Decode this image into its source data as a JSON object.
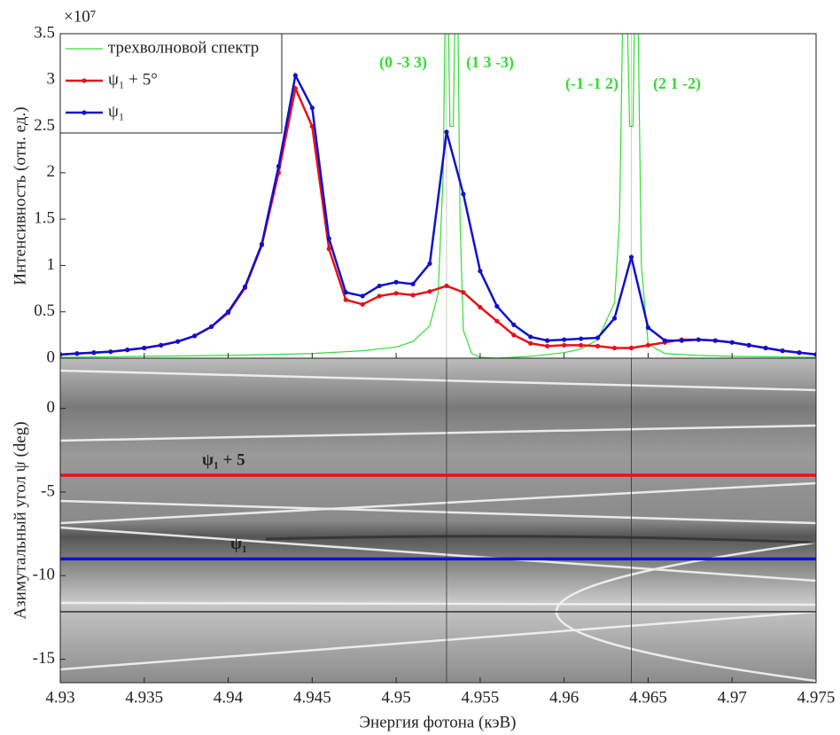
{
  "chart_data": [
    {
      "type": "line",
      "ylabel": "Интенсивность (отн. ед.)",
      "y_multiplier": "×10⁷",
      "xlim": [
        4.93,
        4.975
      ],
      "ylim": [
        0,
        3.5
      ],
      "yticks": [
        0,
        0.5,
        1,
        1.5,
        2,
        2.5,
        3,
        3.5
      ],
      "legend": "upper left",
      "annotations": [
        "(0 -3 3)",
        "(1 3 -3)",
        "(-1 -1 2)",
        "(2 1 -2)"
      ],
      "x": [
        4.93,
        4.931,
        4.932,
        4.933,
        4.934,
        4.935,
        4.936,
        4.937,
        4.938,
        4.939,
        4.94,
        4.941,
        4.942,
        4.943,
        4.944,
        4.945,
        4.946,
        4.947,
        4.948,
        4.949,
        4.95,
        4.951,
        4.952,
        4.953,
        4.954,
        4.955,
        4.956,
        4.957,
        4.958,
        4.959,
        4.96,
        4.961,
        4.962,
        4.963,
        4.964,
        4.965,
        4.966,
        4.967,
        4.968,
        4.969,
        4.97,
        4.971,
        4.972,
        4.973,
        4.974,
        4.975
      ],
      "series": [
        {
          "name": "трехволновой спектр",
          "color": "#33dd33",
          "markers": false,
          "x": [
            4.93,
            4.935,
            4.94,
            4.945,
            4.948,
            4.95,
            4.951,
            4.952,
            4.9525,
            4.9528,
            4.953,
            4.9532,
            4.9534,
            4.9536,
            4.9538,
            4.954,
            4.9545,
            4.955,
            4.956,
            4.958,
            4.96,
            4.961,
            4.962,
            4.963,
            4.9633,
            4.9636,
            4.9639,
            4.9641,
            4.9643,
            4.9646,
            4.965,
            4.966,
            4.968,
            4.97,
            4.975
          ],
          "values": [
            0.01,
            0.02,
            0.03,
            0.05,
            0.08,
            0.12,
            0.18,
            0.35,
            0.7,
            2.0,
            5,
            2.5,
            2.5,
            5,
            1.5,
            0.3,
            0.05,
            0.01,
            0,
            0.02,
            0.06,
            0.1,
            0.2,
            0.6,
            1.5,
            5,
            2.5,
            2.5,
            5,
            1.0,
            0.15,
            0.05,
            0.03,
            0.02,
            0.01
          ]
        },
        {
          "name": "ψ₁ + 5°",
          "color": "#e8111a",
          "markers": true,
          "values": [
            0.04,
            0.05,
            0.06,
            0.07,
            0.09,
            0.11,
            0.14,
            0.18,
            0.24,
            0.34,
            0.49,
            0.76,
            1.22,
            2.0,
            2.91,
            2.5,
            1.18,
            0.63,
            0.58,
            0.67,
            0.7,
            0.68,
            0.72,
            0.78,
            0.71,
            0.55,
            0.4,
            0.25,
            0.16,
            0.13,
            0.14,
            0.14,
            0.13,
            0.11,
            0.11,
            0.14,
            0.17,
            0.2,
            0.2,
            0.19,
            0.17,
            0.14,
            0.11,
            0.08,
            0.06,
            0.04
          ]
        },
        {
          "name": "ψ₁",
          "color": "#1010d0",
          "markers": true,
          "values": [
            0.04,
            0.05,
            0.06,
            0.07,
            0.09,
            0.11,
            0.14,
            0.18,
            0.24,
            0.34,
            0.5,
            0.77,
            1.23,
            2.07,
            3.05,
            2.7,
            1.29,
            0.71,
            0.67,
            0.78,
            0.82,
            0.8,
            1.02,
            2.44,
            1.77,
            0.94,
            0.56,
            0.36,
            0.23,
            0.19,
            0.2,
            0.21,
            0.22,
            0.43,
            1.09,
            0.33,
            0.19,
            0.19,
            0.2,
            0.19,
            0.17,
            0.14,
            0.11,
            0.08,
            0.06,
            0.04
          ]
        }
      ]
    },
    {
      "type": "heatmap",
      "xlabel": "Энергия фотона (кэВ)",
      "ylabel": "Азимутальный угол ψ (deg)",
      "xlim": [
        4.93,
        4.975
      ],
      "ylim": [
        -16.4,
        3
      ],
      "xticks": [
        4.93,
        4.935,
        4.94,
        4.945,
        4.95,
        4.955,
        4.96,
        4.965,
        4.97,
        4.975
      ],
      "yticks": [
        0,
        -5,
        -10,
        -15
      ],
      "hlines": [
        {
          "label": "ψ₁ + 5",
          "color": "#e8111a",
          "value": -4
        },
        {
          "label": "ψ₁",
          "color": "#1010d0",
          "value": -9
        }
      ],
      "vlines": [
        4.953,
        4.964
      ]
    }
  ]
}
